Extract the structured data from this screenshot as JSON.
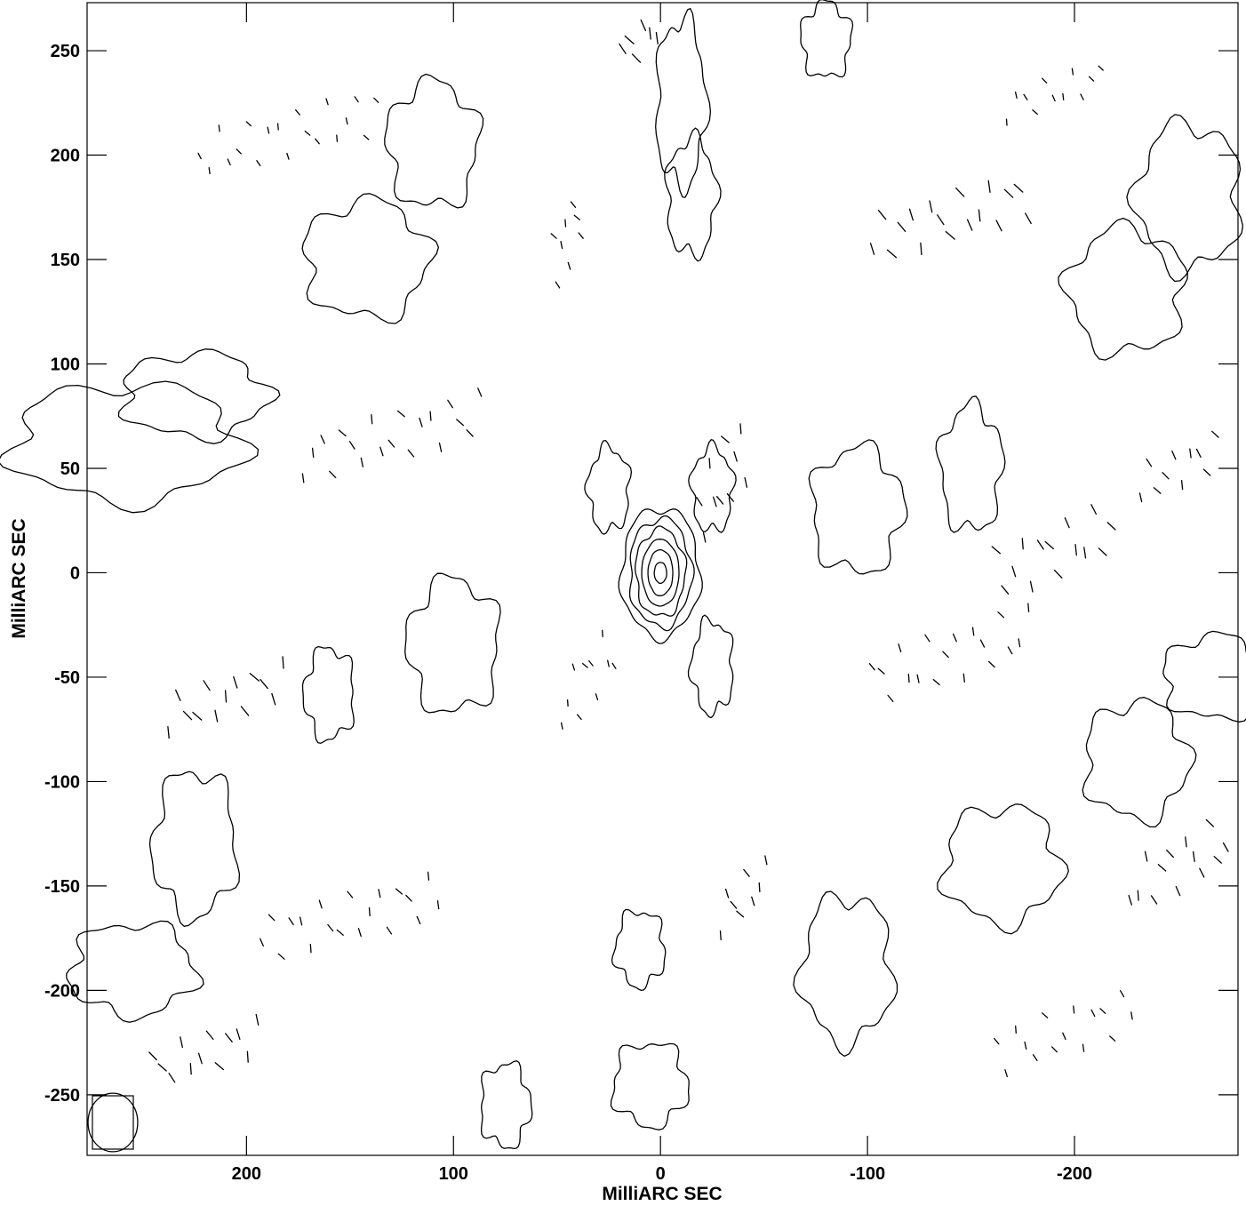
{
  "chart_data": {
    "type": "contour",
    "xlabel": "MilliARC SEC",
    "ylabel": "MilliARC SEC",
    "xlim": [
      277,
      -279
    ],
    "ylim": [
      -279,
      273
    ],
    "x_ticks": [
      200,
      100,
      0,
      -100,
      -200
    ],
    "y_ticks": [
      250,
      200,
      150,
      100,
      50,
      0,
      -50,
      -100,
      -150,
      -200,
      -250
    ],
    "peak": {
      "x": 0,
      "y": 0
    },
    "core_contour_radii": [
      [
        19,
        31
      ],
      [
        15,
        26
      ],
      [
        12,
        21
      ],
      [
        9,
        16
      ],
      [
        6,
        11
      ],
      [
        3,
        5
      ]
    ],
    "beam": {
      "x": 265,
      "y": -265,
      "major": 14,
      "minor": 12
    },
    "positive_sidelobe_islands": [
      {
        "x": 258,
        "y": 62,
        "w": 55,
        "h": 28
      },
      {
        "x": 225,
        "y": 85,
        "w": 35,
        "h": 20
      },
      {
        "x": 142,
        "y": 150,
        "w": 30,
        "h": 28
      },
      {
        "x": 110,
        "y": 205,
        "w": 22,
        "h": 30
      },
      {
        "x": 100,
        "y": -35,
        "w": 22,
        "h": 32
      },
      {
        "x": 160,
        "y": -58,
        "w": 12,
        "h": 22
      },
      {
        "x": 225,
        "y": -130,
        "w": 20,
        "h": 35
      },
      {
        "x": 255,
        "y": -190,
        "w": 30,
        "h": 22
      },
      {
        "x": -10,
        "y": 225,
        "w": 12,
        "h": 40
      },
      {
        "x": -15,
        "y": 180,
        "w": 12,
        "h": 28
      },
      {
        "x": -25,
        "y": 40,
        "w": 10,
        "h": 20
      },
      {
        "x": 25,
        "y": 40,
        "w": 10,
        "h": 20
      },
      {
        "x": -25,
        "y": -45,
        "w": 10,
        "h": 22
      },
      {
        "x": 10,
        "y": -180,
        "w": 12,
        "h": 18
      },
      {
        "x": 5,
        "y": -245,
        "w": 18,
        "h": 20
      },
      {
        "x": 75,
        "y": -255,
        "w": 12,
        "h": 20
      },
      {
        "x": -95,
        "y": 30,
        "w": 22,
        "h": 30
      },
      {
        "x": -150,
        "y": 50,
        "w": 15,
        "h": 30
      },
      {
        "x": -225,
        "y": 135,
        "w": 28,
        "h": 30
      },
      {
        "x": -255,
        "y": 180,
        "w": 25,
        "h": 35
      },
      {
        "x": -90,
        "y": -190,
        "w": 22,
        "h": 35
      },
      {
        "x": -165,
        "y": -140,
        "w": 28,
        "h": 28
      },
      {
        "x": -230,
        "y": -90,
        "w": 25,
        "h": 28
      },
      {
        "x": -268,
        "y": -50,
        "w": 25,
        "h": 20
      },
      {
        "x": -80,
        "y": 255,
        "w": 12,
        "h": 18
      }
    ],
    "negative_dashed_bands": [
      {
        "x": 180,
        "y": 210,
        "w": 90,
        "h": 22
      },
      {
        "x": 130,
        "y": 65,
        "w": 90,
        "h": 22
      },
      {
        "x": 210,
        "y": -60,
        "w": 60,
        "h": 18
      },
      {
        "x": 150,
        "y": -165,
        "w": 90,
        "h": 22
      },
      {
        "x": 220,
        "y": -230,
        "w": 55,
        "h": 18
      },
      {
        "x": 45,
        "y": 160,
        "w": 15,
        "h": 30
      },
      {
        "x": -30,
        "y": 45,
        "w": 25,
        "h": 35
      },
      {
        "x": 35,
        "y": -50,
        "w": 28,
        "h": 30
      },
      {
        "x": -40,
        "y": -155,
        "w": 25,
        "h": 20
      },
      {
        "x": -140,
        "y": 170,
        "w": 80,
        "h": 22
      },
      {
        "x": -140,
        "y": -40,
        "w": 80,
        "h": 25
      },
      {
        "x": -190,
        "y": 10,
        "w": 60,
        "h": 25
      },
      {
        "x": -195,
        "y": -220,
        "w": 70,
        "h": 22
      },
      {
        "x": -250,
        "y": -140,
        "w": 50,
        "h": 25
      },
      {
        "x": -190,
        "y": 230,
        "w": 50,
        "h": 15
      },
      {
        "x": -250,
        "y": 50,
        "w": 40,
        "h": 18
      },
      {
        "x": 10,
        "y": 255,
        "w": 20,
        "h": 15
      }
    ]
  }
}
